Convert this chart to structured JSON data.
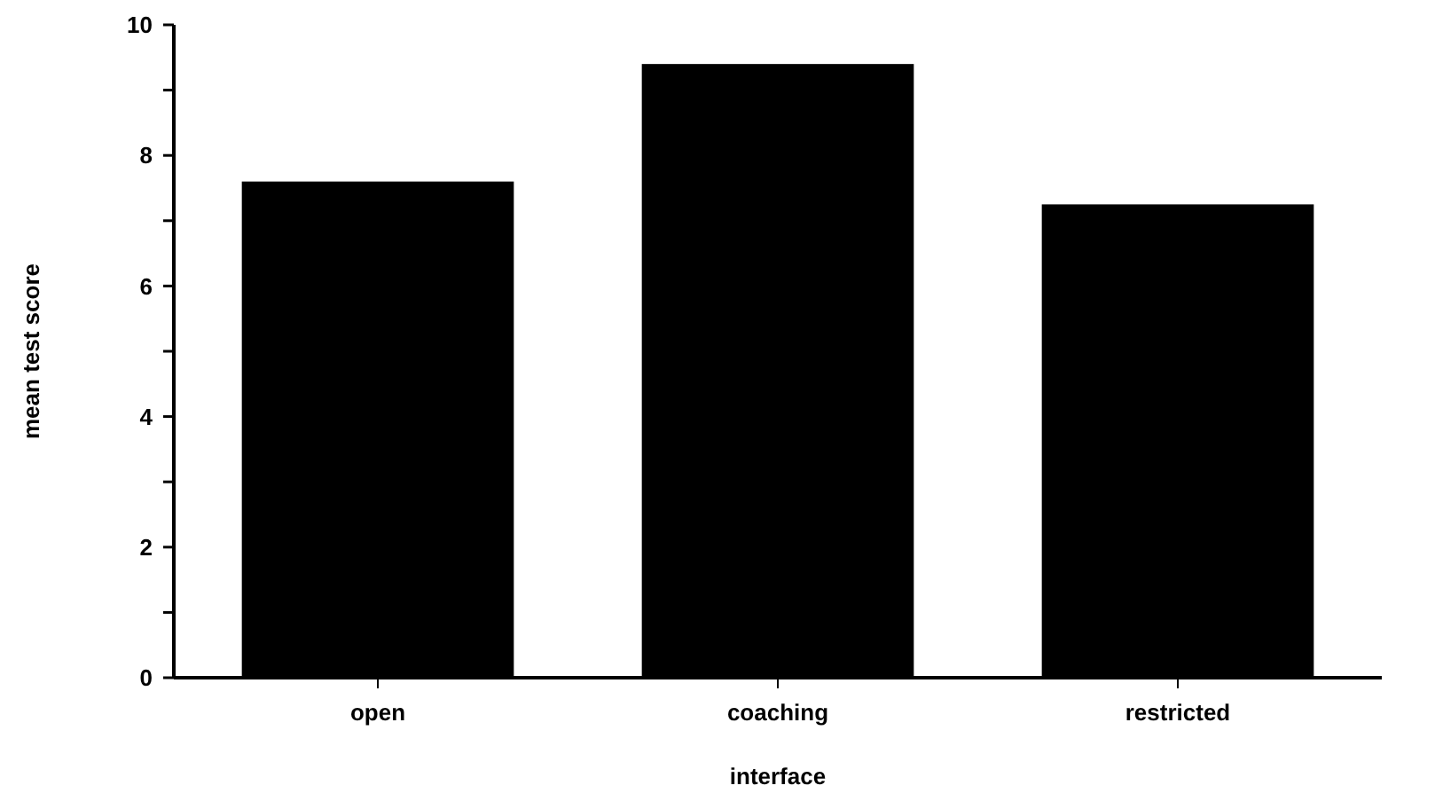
{
  "chart_data": {
    "type": "bar",
    "xlabel": "interface",
    "ylabel": "mean test score",
    "categories": [
      "open",
      "coaching",
      "restricted"
    ],
    "values": [
      7.6,
      9.4,
      7.25
    ],
    "color": "#000000",
    "ylim": [
      0,
      10
    ],
    "yticks": [
      0,
      {
        "value": 1,
        "label": null
      },
      2,
      {
        "value": 3,
        "label": null
      },
      4,
      {
        "value": 5,
        "label": null
      },
      6,
      {
        "value": 7,
        "label": null
      },
      8,
      {
        "value": 9,
        "label": null
      },
      10
    ],
    "grid": false
  }
}
